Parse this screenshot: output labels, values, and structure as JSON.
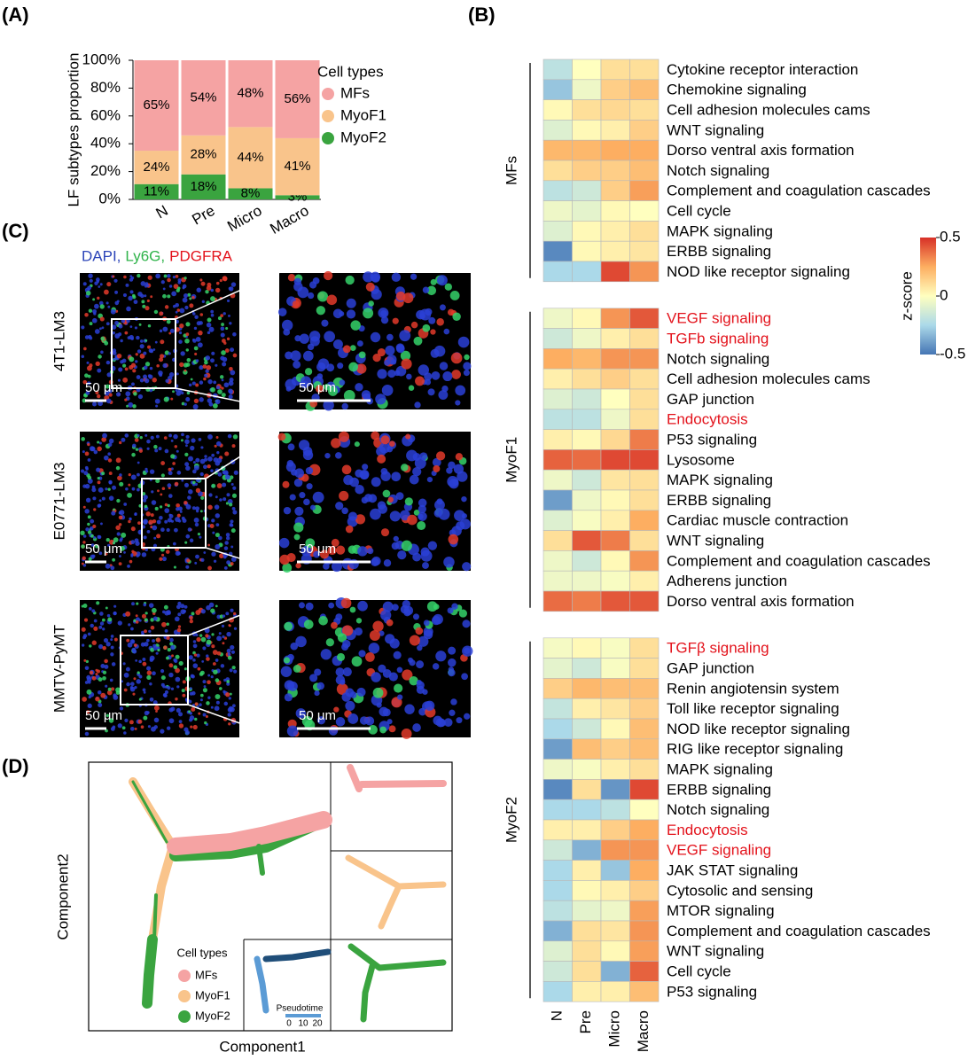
{
  "panels": [
    "(A)",
    "(B)",
    "(C)",
    "(D)"
  ],
  "chart_data": [
    {
      "type": "bar",
      "stacked": true,
      "ylabel": "LF subtypes proportion",
      "categories": [
        "N",
        "Pre",
        "Micro",
        "Macro"
      ],
      "legend_title": "Cell types",
      "series": [
        {
          "name": "MFs",
          "color": "#f5a3a3",
          "values": [
            65,
            54,
            48,
            56
          ],
          "value_labels": [
            "65%",
            "54%",
            "48%",
            "56%"
          ]
        },
        {
          "name": "MyoF1",
          "color": "#f9c48b",
          "values": [
            24,
            28,
            44,
            41
          ],
          "value_labels": [
            "24%",
            "28%",
            "44%",
            "41%"
          ]
        },
        {
          "name": "MyoF2",
          "color": "#3aa43f",
          "values": [
            11,
            18,
            8,
            3
          ],
          "value_labels": [
            "11%",
            "18%",
            "8%",
            "3%"
          ]
        }
      ],
      "ylim": [
        0,
        100
      ],
      "yticks": [
        {
          "value": 0,
          "label": "0%"
        },
        {
          "value": 20,
          "label": "20%"
        },
        {
          "value": 40,
          "label": "40%"
        },
        {
          "value": 60,
          "label": "60%"
        },
        {
          "value": 80,
          "label": "80%"
        },
        {
          "value": 100,
          "label": "100%"
        }
      ]
    },
    {
      "type": "heatmap",
      "columns": [
        "N",
        "Pre",
        "Micro",
        "Macro"
      ],
      "zlim": [
        -0.5,
        0.5
      ],
      "zticks": [
        0.5,
        0,
        -0.5
      ],
      "zlabel": "z-score",
      "colors": [
        "#4575b4",
        "#abd9e9",
        "#ffffbf",
        "#fdae61",
        "#d73027"
      ],
      "groups": [
        {
          "name": "MFs",
          "rows": [
            {
              "label": "Cytokine receptor interaction",
              "values": [
                -0.2,
                0,
                0.1,
                0.1
              ]
            },
            {
              "label": "Chemokine signaling",
              "values": [
                -0.3,
                -0.05,
                0.15,
                0.2
              ]
            },
            {
              "label": "Cell adhesion molecules cams",
              "values": [
                0.02,
                0.1,
                0.12,
                0.1
              ]
            },
            {
              "label": "WNT signaling",
              "values": [
                -0.1,
                0.02,
                0.05,
                0.15
              ]
            },
            {
              "label": "Dorso ventral axis formation",
              "values": [
                0.22,
                0.22,
                0.25,
                0.25
              ]
            },
            {
              "label": "Notch signaling",
              "values": [
                0.1,
                0.15,
                0.15,
                0.2
              ]
            },
            {
              "label": "Complement and coagulation cascades",
              "values": [
                -0.2,
                -0.15,
                0.15,
                0.28
              ]
            },
            {
              "label": "Cell cycle",
              "values": [
                -0.05,
                -0.08,
                0.02,
                0
              ]
            },
            {
              "label": "MAPK signaling",
              "values": [
                -0.1,
                0.02,
                0.05,
                0.1
              ]
            },
            {
              "label": "ERBB signaling",
              "values": [
                -0.45,
                0.02,
                0.05,
                0.08
              ]
            },
            {
              "label": "NOD like receptor signaling",
              "values": [
                -0.25,
                -0.25,
                0.45,
                0.3
              ]
            }
          ]
        },
        {
          "name": "MyoF1",
          "rows": [
            {
              "label": "VEGF signaling",
              "label_color": "#e3121b",
              "values": [
                -0.05,
                0.02,
                0.3,
                0.42
              ]
            },
            {
              "label": "TGFb signaling",
              "label_color": "#e3121b",
              "values": [
                -0.15,
                -0.05,
                0.05,
                0.1
              ]
            },
            {
              "label": "Notch signaling",
              "values": [
                0.25,
                0.22,
                0.3,
                0.3
              ]
            },
            {
              "label": "Cell adhesion molecules cams",
              "values": [
                0.05,
                0.1,
                0.15,
                0.1
              ]
            },
            {
              "label": "GAP junction",
              "values": [
                -0.1,
                -0.15,
                0,
                0.1
              ]
            },
            {
              "label": "Endocytosis",
              "label_color": "#e3121b",
              "values": [
                -0.2,
                -0.2,
                -0.05,
                0.1
              ]
            },
            {
              "label": "P53 signaling",
              "values": [
                0.05,
                0.02,
                0.12,
                0.35
              ]
            },
            {
              "label": "Lysosome",
              "values": [
                0.4,
                0.38,
                0.45,
                0.45
              ]
            },
            {
              "label": "MAPK signaling",
              "values": [
                -0.05,
                -0.15,
                0.08,
                0.1
              ]
            },
            {
              "label": "ERBB signaling",
              "values": [
                -0.4,
                -0.05,
                0.02,
                0.1
              ]
            },
            {
              "label": "Cardiac muscle contraction",
              "values": [
                -0.1,
                -0.02,
                0.05,
                0.25
              ]
            },
            {
              "label": "WNT signaling",
              "values": [
                0.1,
                0.42,
                0.35,
                0.1
              ]
            },
            {
              "label": "Complement and coagulation cascades",
              "values": [
                -0.05,
                -0.15,
                0.02,
                0.3
              ]
            },
            {
              "label": "Adherens junction",
              "values": [
                -0.05,
                -0.05,
                -0.02,
                0.05
              ]
            },
            {
              "label": "Dorso ventral axis formation",
              "values": [
                0.38,
                0.35,
                0.42,
                0.42
              ]
            }
          ]
        },
        {
          "name": "MyoF2",
          "rows": [
            {
              "label": "TGFβ signaling",
              "label_color": "#e3121b",
              "values": [
                -0.03,
                0.02,
                -0.02,
                0.1
              ]
            },
            {
              "label": "GAP junction",
              "values": [
                -0.08,
                -0.15,
                -0.02,
                0.1
              ]
            },
            {
              "label": "Renin angiotensin system",
              "values": [
                0.15,
                0.22,
                0.2,
                0.2
              ]
            },
            {
              "label": "Toll like receptor signaling",
              "values": [
                -0.18,
                0.05,
                0.08,
                0.15
              ]
            },
            {
              "label": "NOD like receptor signaling",
              "values": [
                -0.25,
                -0.15,
                0.02,
                0.2
              ]
            },
            {
              "label": "RIG like receptor signaling",
              "values": [
                -0.4,
                0.2,
                0.15,
                0.2
              ]
            },
            {
              "label": "MAPK signaling",
              "values": [
                -0.05,
                -0.02,
                0.05,
                0.1
              ]
            },
            {
              "label": "ERBB signaling",
              "values": [
                -0.45,
                0.1,
                -0.42,
                0.45
              ]
            },
            {
              "label": "Notch signaling",
              "values": [
                -0.25,
                -0.25,
                -0.2,
                0
              ]
            },
            {
              "label": "Endocytosis",
              "label_color": "#e3121b",
              "values": [
                0.05,
                0.05,
                0.15,
                0.25
              ]
            },
            {
              "label": "VEGF signaling",
              "label_color": "#e3121b",
              "values": [
                -0.15,
                -0.35,
                0.3,
                0.3
              ]
            },
            {
              "label": "JAK STAT signaling",
              "values": [
                -0.25,
                0.05,
                -0.3,
                0.25
              ]
            },
            {
              "label": "Cytosolic and sensing",
              "values": [
                -0.25,
                0.02,
                0.05,
                0.15
              ]
            },
            {
              "label": "MTOR signaling",
              "values": [
                -0.2,
                -0.08,
                -0.05,
                0.28
              ]
            },
            {
              "label": "Complement and coagulation cascades",
              "values": [
                -0.35,
                0.1,
                0.08,
                0.3
              ]
            },
            {
              "label": "WNT signaling",
              "values": [
                -0.1,
                0.1,
                0.02,
                0.28
              ]
            },
            {
              "label": "Cell cycle",
              "values": [
                -0.15,
                0.1,
                -0.35,
                0.4
              ]
            },
            {
              "label": "P53 signaling",
              "values": [
                -0.25,
                0.05,
                0.05,
                0.2
              ]
            }
          ]
        }
      ]
    }
  ],
  "microscopy": {
    "stains": [
      {
        "name": "DAPI,",
        "color": "#2b44b8"
      },
      {
        "name": "Ly6G,",
        "color": "#2fb34a"
      },
      {
        "name": "PDGFRA",
        "color": "#e3121b"
      }
    ],
    "rows": [
      {
        "label": "4T1-LM3",
        "scale_left": "50 μm",
        "scale_right": "50 μm"
      },
      {
        "label": "E0771-LM3",
        "scale_left": "50 μm",
        "scale_right": "50 μm"
      },
      {
        "label": "MMTV-PyMT",
        "scale_left": "50 μm",
        "scale_right": "50 μm"
      }
    ]
  },
  "trajectory": {
    "xlabel": "Component1",
    "ylabel": "Component2",
    "legend_title": "Cell types",
    "legend": [
      {
        "name": "MFs",
        "color": "#f5a3a3"
      },
      {
        "name": "MyoF1",
        "color": "#f9c48b"
      },
      {
        "name": "MyoF2",
        "color": "#3aa43f"
      }
    ],
    "pseudotime_label": "Pseudotime",
    "pseudotime_ticks": [
      0,
      10,
      20
    ]
  }
}
